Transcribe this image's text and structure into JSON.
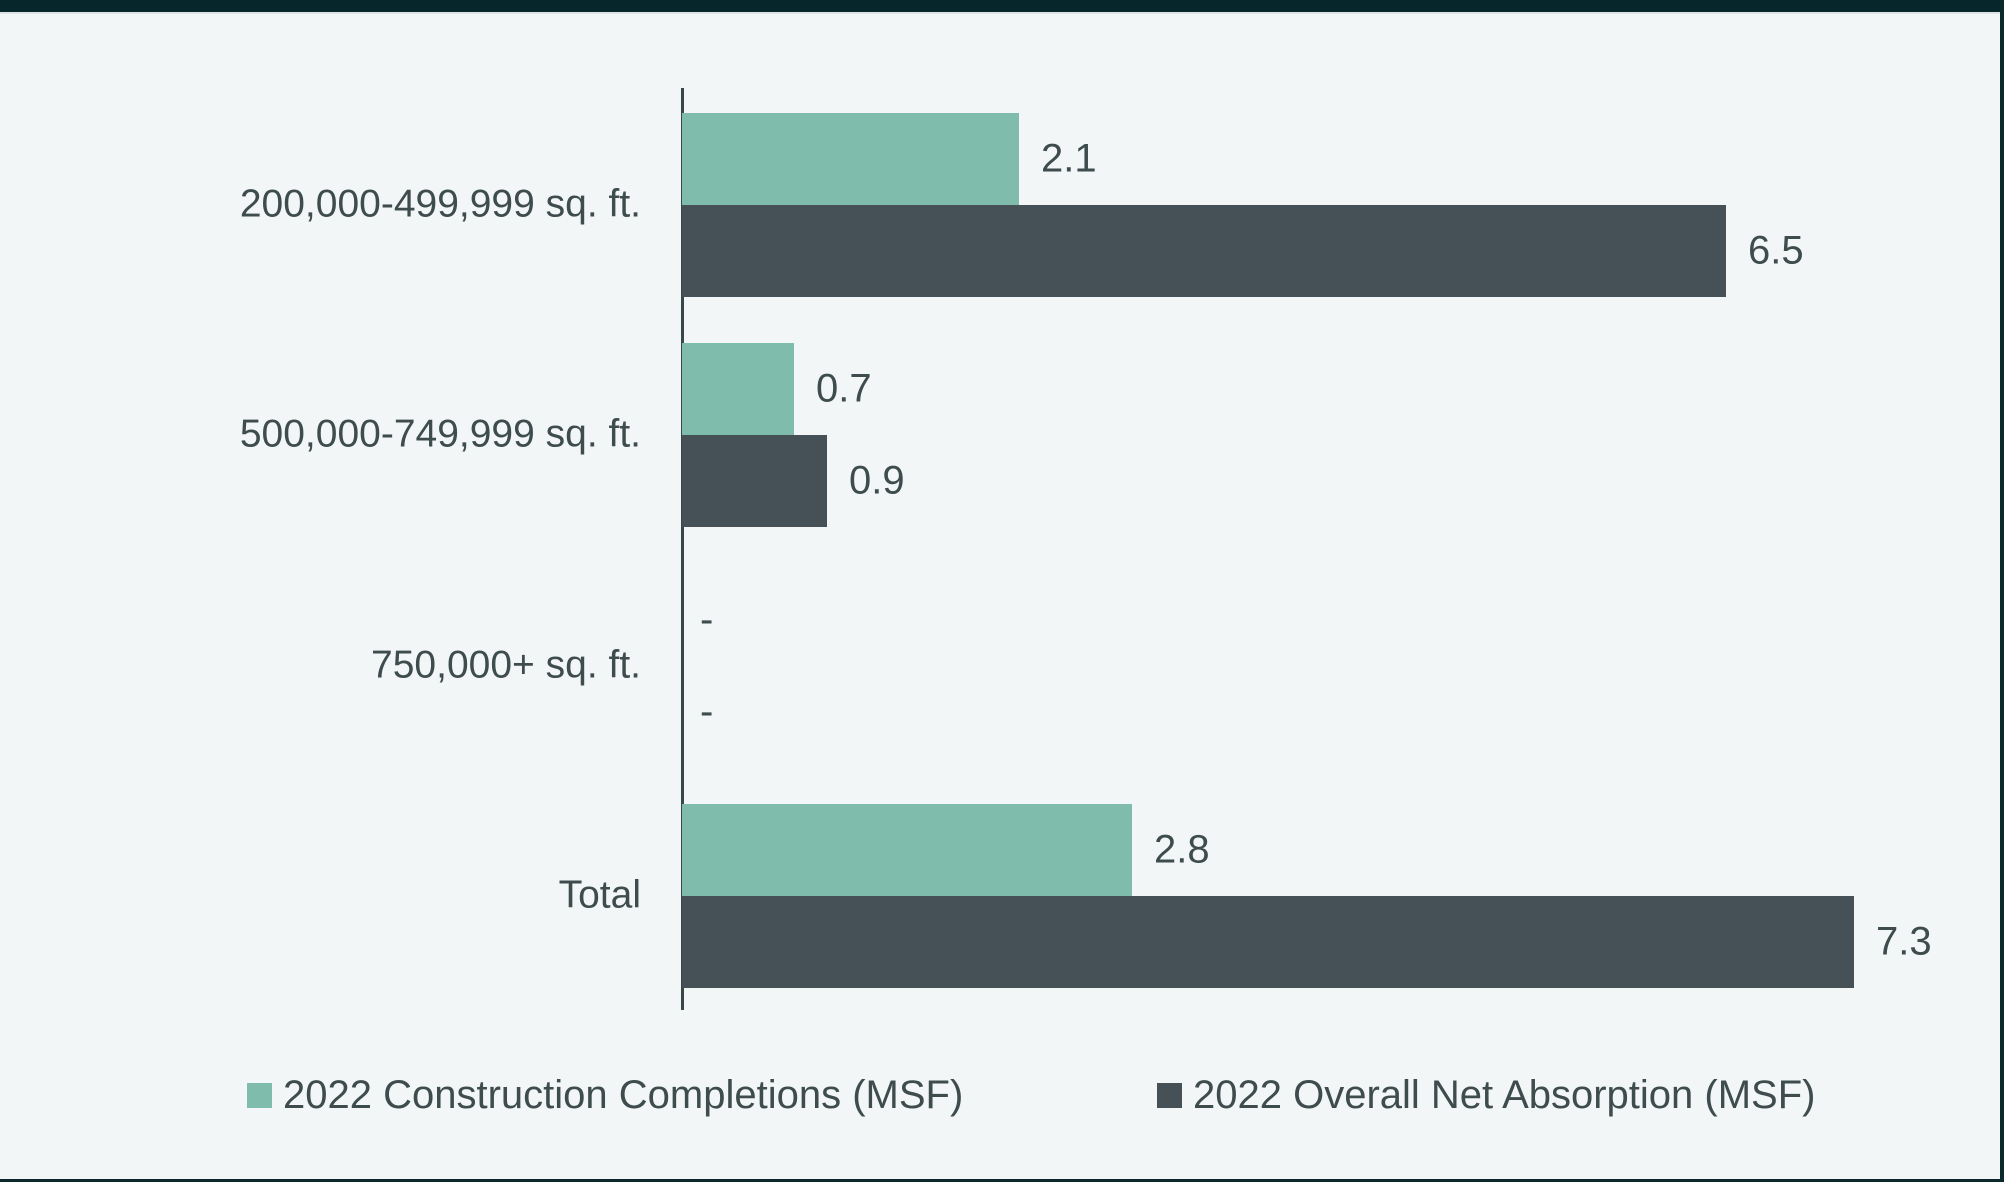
{
  "page": {
    "background": "#f2f6f6",
    "top_bar_color": "#07262b",
    "border_color": "#0b282c",
    "axis_color": "#3a474a",
    "text_color": "#3e4c4e"
  },
  "chart_data": {
    "type": "bar",
    "orientation": "horizontal",
    "title": "",
    "xlabel": "",
    "ylabel": "",
    "categories": [
      "200,000-499,999 sq. ft.",
      "500,000-749,999 sq. ft.",
      "750,000+ sq. ft.",
      "Total"
    ],
    "series": [
      {
        "name": "2022 Construction Completions (MSF)",
        "color": "#7fbcac",
        "values": [
          2.1,
          0.7,
          null,
          2.8
        ],
        "value_labels": [
          "2.1",
          "0.7",
          "-",
          "2.8"
        ]
      },
      {
        "name": "2022 Overall Net Absorption (MSF)",
        "color": "#455157",
        "values": [
          6.5,
          0.9,
          null,
          7.3
        ],
        "value_labels": [
          "6.5",
          "0.9",
          "-",
          "7.3"
        ]
      }
    ],
    "xlim": [
      0,
      8.2
    ],
    "grid": false,
    "legend_position": "bottom"
  }
}
